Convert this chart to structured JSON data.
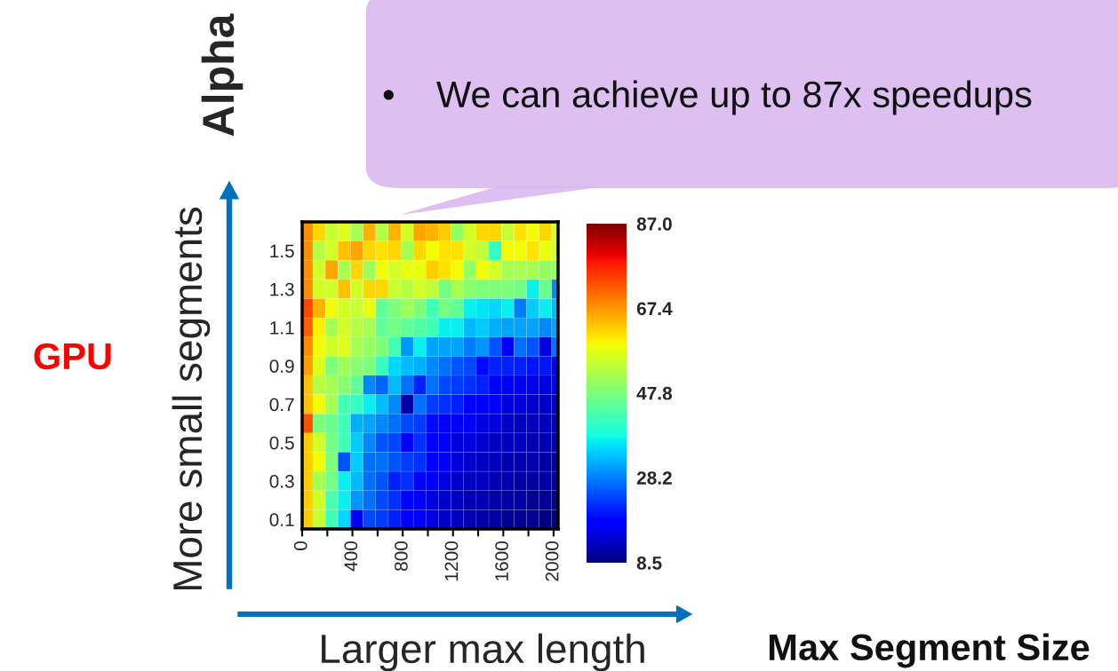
{
  "chart_data": {
    "type": "heatmap",
    "title": "Alpha",
    "xlabel": "Larger max length",
    "ylabel": "More small segments",
    "annotations": [
      "•    We can achieve up to 87x speedups",
      "GPU",
      "Max Segment Size"
    ],
    "x": [
      35,
      135,
      235,
      335,
      435,
      535,
      635,
      735,
      835,
      935,
      1035,
      1135,
      1235,
      1335,
      1435,
      1535,
      1635,
      1735,
      1835,
      1935,
      2035
    ],
    "y": [
      1.6,
      1.5,
      1.4,
      1.3,
      1.2,
      1.1,
      1.0,
      0.9,
      0.8,
      0.7,
      0.6,
      0.5,
      0.4,
      0.3,
      0.2,
      0.1
    ],
    "xlim": [
      0,
      2036
    ],
    "ylim": [
      0.05,
      1.65
    ],
    "xticks": [
      0,
      {
        "value": 200,
        "label": null
      },
      400,
      {
        "value": 600,
        "label": null
      },
      800,
      {
        "value": 1000,
        "label": null
      },
      1200,
      {
        "value": 1400,
        "label": null
      },
      1600,
      {
        "value": 1800,
        "label": null
      },
      2000
    ],
    "yticks": [
      0.1,
      {
        "value": 0.2,
        "label": null
      },
      0.3,
      {
        "value": 0.4,
        "label": null
      },
      0.5,
      {
        "value": 0.6,
        "label": null
      },
      0.7,
      {
        "value": 0.8,
        "label": null
      },
      0.9,
      {
        "value": 1.0,
        "label": null
      },
      1.1,
      {
        "value": 1.2,
        "label": null
      },
      1.3,
      {
        "value": 1.4,
        "label": null
      },
      1.5,
      {
        "value": 1.6,
        "label": null
      }
    ],
    "cells": [
      [
        68,
        62,
        55,
        57,
        52,
        65,
        53,
        65,
        56,
        66,
        65,
        63,
        50,
        56,
        62,
        62,
        55,
        61,
        59,
        62,
        56
      ],
      [
        68,
        53,
        56,
        64,
        66,
        62,
        61,
        62,
        52,
        62,
        59,
        61,
        61,
        56,
        54,
        41,
        59,
        59,
        61,
        58,
        56
      ],
      [
        68,
        56,
        66,
        52,
        62,
        51,
        59,
        56,
        58,
        58,
        63,
        61,
        59,
        50,
        59,
        56,
        52,
        52,
        52,
        50,
        50
      ],
      [
        68,
        56,
        56,
        64,
        56,
        62,
        62,
        55,
        53,
        56,
        54,
        47,
        52,
        49,
        48,
        48,
        48,
        47,
        37,
        46,
        29
      ],
      [
        74,
        65,
        59,
        56,
        55,
        58,
        45,
        48,
        51,
        48,
        42,
        47,
        45,
        37,
        36,
        35,
        37,
        28,
        34,
        37,
        33
      ],
      [
        72,
        60,
        52,
        56,
        53,
        52,
        45,
        47,
        45,
        44,
        42,
        37,
        37,
        33,
        34,
        32,
        31,
        31,
        31,
        29,
        31
      ],
      [
        68,
        59,
        56,
        57,
        52,
        50,
        48,
        42,
        30,
        37,
        31,
        31,
        31,
        28,
        30,
        25,
        17,
        27,
        25,
        15,
        27
      ],
      [
        67,
        57,
        48,
        51,
        49,
        48,
        41,
        35,
        33,
        32,
        29,
        27,
        25,
        24,
        19,
        21,
        21,
        21,
        20,
        20,
        18
      ],
      [
        64,
        53,
        52,
        49,
        45,
        29,
        26,
        33,
        27,
        21,
        27,
        24,
        23,
        22,
        21,
        18,
        17,
        17,
        16,
        15,
        17
      ],
      [
        64,
        59,
        52,
        42,
        41,
        37,
        33,
        29,
        11,
        27,
        23,
        22,
        21,
        18,
        17,
        18,
        15,
        15,
        14,
        14,
        14
      ],
      [
        73,
        48,
        46,
        42,
        32,
        31,
        29,
        27,
        24,
        23,
        19,
        17,
        18,
        17,
        15,
        15,
        14,
        13,
        13,
        13,
        13
      ],
      [
        63,
        56,
        47,
        42,
        34,
        29,
        25,
        24,
        17,
        22,
        18,
        17,
        15,
        15,
        14,
        13,
        13,
        13,
        12,
        12,
        12
      ],
      [
        63,
        59,
        48,
        25,
        34,
        27,
        27,
        25,
        23,
        22,
        18,
        17,
        15,
        14,
        13,
        13,
        12,
        12,
        12,
        11,
        11
      ],
      [
        63,
        52,
        47,
        37,
        33,
        27,
        25,
        21,
        22,
        18,
        17,
        15,
        14,
        13,
        13,
        12,
        12,
        11,
        11,
        11,
        11
      ],
      [
        63,
        56,
        43,
        37,
        30,
        27,
        24,
        22,
        18,
        17,
        15,
        14,
        13,
        12,
        12,
        11,
        11,
        11,
        10,
        10,
        10
      ],
      [
        63,
        55,
        42,
        35,
        18,
        24,
        23,
        21,
        18,
        17,
        15,
        14,
        13,
        12,
        11,
        11,
        10,
        10,
        10,
        9,
        9
      ]
    ],
    "clim": [
      8.5,
      87.0
    ],
    "cticks": [
      8.5,
      28.2,
      47.8,
      67.4,
      {
        "value": 87.0,
        "label": "87.0"
      }
    ]
  }
}
